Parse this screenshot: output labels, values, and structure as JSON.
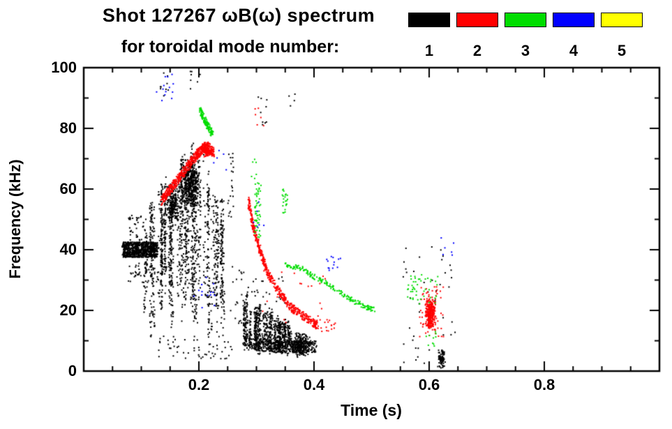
{
  "chart_data": {
    "type": "scatter",
    "title": "Shot 127267 ωB(ω) spectrum",
    "subtitle": "for toroidal mode number:",
    "xlabel": "Time (s)",
    "ylabel": "Frequency (kHz)",
    "xlim": [
      0,
      1.0
    ],
    "ylim": [
      0,
      100
    ],
    "grid": false,
    "xticks": {
      "major": [
        0.2,
        0.4,
        0.6,
        0.8
      ],
      "labels": [
        "0.2",
        "0.4",
        "0.6",
        "0.8"
      ],
      "minor_step": 0.05
    },
    "yticks": {
      "major": [
        0,
        20,
        40,
        60,
        80,
        100
      ],
      "labels": [
        "0",
        "20",
        "40",
        "60",
        "80",
        "100"
      ],
      "minor_step": 10
    },
    "legend": {
      "position": "top-right",
      "modes": [
        {
          "label": "1",
          "color": "#000000"
        },
        {
          "label": "2",
          "color": "#ff0000"
        },
        {
          "label": "3",
          "color": "#00dd00"
        },
        {
          "label": "4",
          "color": "#0000ff"
        },
        {
          "label": "5",
          "color": "#ffff00"
        }
      ]
    },
    "series": [
      {
        "name": "toroidal mode n=1",
        "mode": 1,
        "color": "#000000",
        "features": [
          {
            "type": "band",
            "pts": [
              [
                0.068,
                40
              ],
              [
                0.128,
                40
              ]
            ],
            "width": 5,
            "n": 800
          },
          {
            "type": "box",
            "box": [
              0.072,
              0.13,
              29,
              36
            ],
            "n": 45
          },
          {
            "type": "box",
            "box": [
              0.078,
              0.105,
              43,
              52
            ],
            "n": 35
          },
          {
            "type": "stripes",
            "trange": [
              0.1,
              0.245
            ],
            "count": 48,
            "env": [
              [
                0.1,
                48
              ],
              [
                0.13,
                55
              ],
              [
                0.16,
                61
              ],
              [
                0.19,
                70
              ],
              [
                0.21,
                67
              ],
              [
                0.245,
                52
              ]
            ],
            "bot": [
              8,
              34
            ],
            "density": 34
          },
          {
            "type": "blob",
            "c": [
              0.185,
              62
            ],
            "r": [
              0.02,
              9
            ],
            "n": 500
          },
          {
            "type": "blob",
            "c": [
              0.155,
              55
            ],
            "r": [
              0.012,
              7
            ],
            "n": 200
          },
          {
            "type": "box",
            "box": [
              0.13,
              0.26,
              4,
              13
            ],
            "n": 55
          },
          {
            "type": "box",
            "box": [
              0.25,
              0.262,
              50,
              72
            ],
            "n": 22
          },
          {
            "type": "box",
            "box": [
              0.255,
              0.278,
              14,
              36
            ],
            "n": 18
          },
          {
            "type": "stripes",
            "trange": [
              0.278,
              0.36
            ],
            "count": 30,
            "env": [
              [
                0.278,
                24
              ],
              [
                0.3,
                21
              ],
              [
                0.33,
                18
              ],
              [
                0.36,
                15
              ]
            ],
            "bot": [
              5,
              9
            ],
            "density": 24
          },
          {
            "type": "band",
            "pts": [
              [
                0.28,
                9
              ],
              [
                0.34,
                8
              ],
              [
                0.405,
                8
              ]
            ],
            "width": 4,
            "n": 420
          },
          {
            "type": "blob",
            "c": [
              0.375,
              8.5
            ],
            "r": [
              0.018,
              4.5
            ],
            "n": 240
          },
          {
            "type": "box",
            "box": [
              0.285,
              0.35,
              22,
              31
            ],
            "n": 22
          },
          {
            "type": "box",
            "box": [
              0.13,
              0.148,
              90,
              99
            ],
            "n": 9
          },
          {
            "type": "box",
            "box": [
              0.185,
              0.203,
              92,
              100
            ],
            "n": 7
          },
          {
            "type": "box",
            "box": [
              0.298,
              0.322,
              80,
              91
            ],
            "n": 9
          },
          {
            "type": "box",
            "box": [
              0.355,
              0.368,
              87,
              92
            ],
            "n": 4
          },
          {
            "type": "box",
            "box": [
              0.555,
              0.645,
              1,
              42
            ],
            "n": 42
          },
          {
            "type": "blob",
            "c": [
              0.622,
              4
            ],
            "r": [
              0.007,
              3.5
            ],
            "n": 90
          }
        ]
      },
      {
        "name": "toroidal mode n=2",
        "mode": 2,
        "color": "#ff0000",
        "features": [
          {
            "type": "band",
            "pts": [
              [
                0.135,
                56
              ],
              [
                0.155,
                61
              ],
              [
                0.175,
                66
              ],
              [
                0.195,
                71
              ],
              [
                0.21,
                74
              ],
              [
                0.226,
                72
              ]
            ],
            "width": 3.2,
            "n": 560
          },
          {
            "type": "blob",
            "c": [
              0.213,
              73
            ],
            "r": [
              0.008,
              2.6
            ],
            "n": 130
          },
          {
            "type": "band",
            "pts": [
              [
                0.286,
                56
              ],
              [
                0.295,
                47
              ],
              [
                0.306,
                40
              ],
              [
                0.32,
                32
              ],
              [
                0.34,
                26
              ],
              [
                0.36,
                21
              ],
              [
                0.382,
                18
              ],
              [
                0.406,
                15
              ]
            ],
            "width": 2.6,
            "n": 520
          },
          {
            "type": "box",
            "box": [
              0.4,
              0.437,
              13,
              17
            ],
            "n": 20
          },
          {
            "type": "box",
            "box": [
              0.3,
              0.42,
              16,
              34
            ],
            "n": 20
          },
          {
            "type": "blob",
            "c": [
              0.602,
              19
            ],
            "r": [
              0.01,
              5.5
            ],
            "n": 300
          },
          {
            "type": "box",
            "box": [
              0.583,
              0.625,
              11,
              28
            ],
            "n": 60
          },
          {
            "type": "box",
            "box": [
              0.295,
              0.315,
              80,
              87
            ],
            "n": 6
          }
        ]
      },
      {
        "name": "toroidal mode n=3",
        "mode": 3,
        "color": "#00dd00",
        "features": [
          {
            "type": "band",
            "pts": [
              [
                0.202,
                86
              ],
              [
                0.212,
                82
              ],
              [
                0.224,
                78
              ]
            ],
            "width": 2.2,
            "n": 140
          },
          {
            "type": "box",
            "box": [
              0.297,
              0.308,
              44,
              62
            ],
            "n": 55
          },
          {
            "type": "box",
            "box": [
              0.345,
              0.355,
              52,
              60
            ],
            "n": 22
          },
          {
            "type": "band",
            "pts": [
              [
                0.35,
                35
              ],
              [
                0.376,
                34
              ],
              [
                0.402,
                31
              ],
              [
                0.43,
                28
              ],
              [
                0.46,
                24
              ],
              [
                0.492,
                21
              ],
              [
                0.506,
                20
              ]
            ],
            "width": 1.6,
            "n": 190
          },
          {
            "type": "box",
            "box": [
              0.562,
              0.615,
              22,
              32
            ],
            "n": 46
          },
          {
            "type": "box",
            "box": [
              0.594,
              0.612,
              8,
              13
            ],
            "n": 10
          },
          {
            "type": "box",
            "box": [
              0.29,
              0.3,
              63,
              70
            ],
            "n": 6
          }
        ]
      },
      {
        "name": "toroidal mode n=4",
        "mode": 4,
        "color": "#0000ff",
        "features": [
          {
            "type": "box",
            "box": [
              0.125,
              0.16,
              86,
              98
            ],
            "n": 13
          },
          {
            "type": "box",
            "box": [
              0.19,
              0.23,
              20,
              32
            ],
            "n": 15
          },
          {
            "type": "box",
            "box": [
              0.42,
              0.45,
              33,
              38
            ],
            "n": 13
          },
          {
            "type": "box",
            "box": [
              0.295,
              0.315,
              46,
              56
            ],
            "n": 6
          },
          {
            "type": "box",
            "box": [
              0.62,
              0.645,
              38,
              44
            ],
            "n": 6
          },
          {
            "type": "box",
            "box": [
              0.225,
              0.248,
              66,
              74
            ],
            "n": 5
          }
        ]
      },
      {
        "name": "toroidal mode n=5",
        "mode": 5,
        "color": "#ffff00",
        "features": []
      }
    ]
  }
}
